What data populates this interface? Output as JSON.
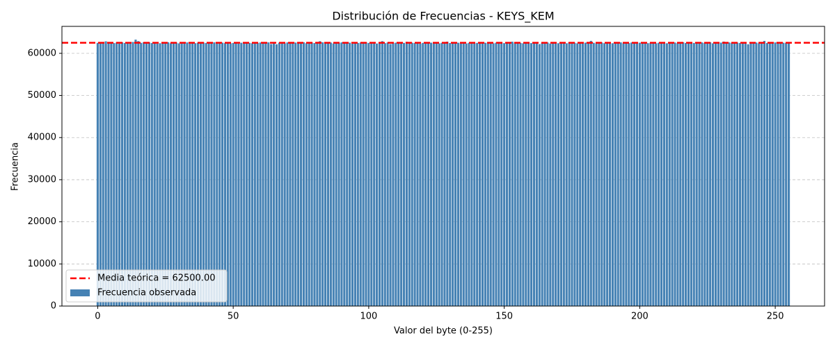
{
  "chart_data": {
    "type": "bar",
    "title": "Distribución de Frecuencias - KEYS_KEM",
    "xlabel": "Valor del byte (0-255)",
    "ylabel": "Frecuencia",
    "x": [
      0,
      1,
      2,
      3,
      4,
      5,
      6,
      7,
      8,
      9,
      10,
      11,
      12,
      13,
      14,
      15,
      16,
      17,
      18,
      19,
      20,
      21,
      22,
      23,
      24,
      25,
      26,
      27,
      28,
      29,
      30,
      31,
      32,
      33,
      34,
      35,
      36,
      37,
      38,
      39,
      40,
      41,
      42,
      43,
      44,
      45,
      46,
      47,
      48,
      49,
      50,
      51,
      52,
      53,
      54,
      55,
      56,
      57,
      58,
      59,
      60,
      61,
      62,
      63,
      64,
      65,
      66,
      67,
      68,
      69,
      70,
      71,
      72,
      73,
      74,
      75,
      76,
      77,
      78,
      79,
      80,
      81,
      82,
      83,
      84,
      85,
      86,
      87,
      88,
      89,
      90,
      91,
      92,
      93,
      94,
      95,
      96,
      97,
      98,
      99,
      100,
      101,
      102,
      103,
      104,
      105,
      106,
      107,
      108,
      109,
      110,
      111,
      112,
      113,
      114,
      115,
      116,
      117,
      118,
      119,
      120,
      121,
      122,
      123,
      124,
      125,
      126,
      127,
      128,
      129,
      130,
      131,
      132,
      133,
      134,
      135,
      136,
      137,
      138,
      139,
      140,
      141,
      142,
      143,
      144,
      145,
      146,
      147,
      148,
      149,
      150,
      151,
      152,
      153,
      154,
      155,
      156,
      157,
      158,
      159,
      160,
      161,
      162,
      163,
      164,
      165,
      166,
      167,
      168,
      169,
      170,
      171,
      172,
      173,
      174,
      175,
      176,
      177,
      178,
      179,
      180,
      181,
      182,
      183,
      184,
      185,
      186,
      187,
      188,
      189,
      190,
      191,
      192,
      193,
      194,
      195,
      196,
      197,
      198,
      199,
      200,
      201,
      202,
      203,
      204,
      205,
      206,
      207,
      208,
      209,
      210,
      211,
      212,
      213,
      214,
      215,
      216,
      217,
      218,
      219,
      220,
      221,
      222,
      223,
      224,
      225,
      226,
      227,
      228,
      229,
      230,
      231,
      232,
      233,
      234,
      235,
      236,
      237,
      238,
      239,
      240,
      241,
      242,
      243,
      244,
      245,
      246,
      247,
      248,
      249,
      250,
      251,
      252,
      253,
      254,
      255
    ],
    "series": [
      {
        "name": "Frecuencia observada",
        "color": "#4682b4",
        "values": [
          62480,
          62610,
          62390,
          62850,
          62520,
          62700,
          62430,
          62550,
          62310,
          62600,
          62470,
          62380,
          62560,
          62700,
          63250,
          62900,
          62490,
          62620,
          62350,
          62580,
          62440,
          62510,
          62280,
          62400,
          62530,
          62480,
          62620,
          62390,
          62460,
          62550,
          62370,
          62510,
          62450,
          62590,
          62320,
          62680,
          62410,
          62500,
          62380,
          62560,
          62470,
          62430,
          62520,
          62610,
          62360,
          62480,
          62540,
          62420,
          62500,
          62380,
          62460,
          62570,
          62290,
          62510,
          62440,
          62620,
          62480,
          62390,
          62530,
          62450,
          62560,
          62370,
          62490,
          62600,
          62200,
          62410,
          62150,
          62520,
          62460,
          62380,
          62590,
          62430,
          62500,
          62560,
          62350,
          62480,
          62620,
          62410,
          62470,
          62530,
          62440,
          62710,
          62880,
          62620,
          62390,
          62480,
          62560,
          62340,
          62510,
          62450,
          62600,
          62380,
          62470,
          62530,
          62290,
          62420,
          62460,
          62550,
          62380,
          62620,
          62470,
          62400,
          62510,
          62330,
          62480,
          62890,
          62420,
          62560,
          62210,
          62470,
          62530,
          62390,
          62600,
          62480,
          62740,
          62390,
          62520,
          62450,
          62560,
          62310,
          62480,
          62610,
          62400,
          62530,
          62460,
          62580,
          62370,
          62490,
          62520,
          62780,
          62450,
          62600,
          62380,
          62510,
          62470,
          62560,
          62340,
          62490,
          62620,
          62420,
          62480,
          62550,
          62390,
          62510,
          62470,
          62600,
          62380,
          62530,
          62450,
          62510,
          62420,
          62590,
          62480,
          62760,
          62410,
          62530,
          62460,
          62380,
          62580,
          62500,
          62430,
          62610,
          62370,
          62200,
          62500,
          62450,
          62560,
          62330,
          62480,
          62540,
          62400,
          62520,
          62460,
          62390,
          62570,
          62480,
          62510,
          62380,
          62600,
          62450,
          62540,
          62420,
          62960,
          62500,
          62370,
          62480,
          62560,
          62410,
          62530,
          62470,
          62390,
          62550,
          62460,
          62600,
          62380,
          62510,
          62430,
          62570,
          62480,
          62350,
          62520,
          62460,
          62600,
          62410,
          62490,
          62550,
          62380,
          62510,
          62470,
          62590,
          62390,
          62520,
          62440,
          62560,
          62410,
          62500,
          62630,
          62460,
          62380,
          62540,
          62470,
          62520,
          62400,
          62580,
          62450,
          62510,
          62620,
          62370,
          62500,
          62460,
          62550,
          62790,
          62420,
          62580,
          62480,
          62390,
          62530,
          62470,
          62600,
          62410,
          62150,
          62500,
          62440,
          62570,
          62380,
          62520,
          62950,
          62460,
          62540,
          62410,
          62590,
          62480,
          62370,
          62520,
          62460,
          62500
        ]
      }
    ],
    "hline": {
      "value": 62500,
      "label": "Media teórica = 62500.00",
      "color": "#ff0000"
    },
    "xlim": [
      -13.2,
      268.2
    ],
    "xticks": [
      0,
      50,
      100,
      150,
      200,
      250
    ],
    "ylim": [
      0,
      66400
    ],
    "yticks": [
      0,
      10000,
      20000,
      30000,
      40000,
      50000,
      60000
    ],
    "grid": true,
    "legend": "lower left"
  }
}
